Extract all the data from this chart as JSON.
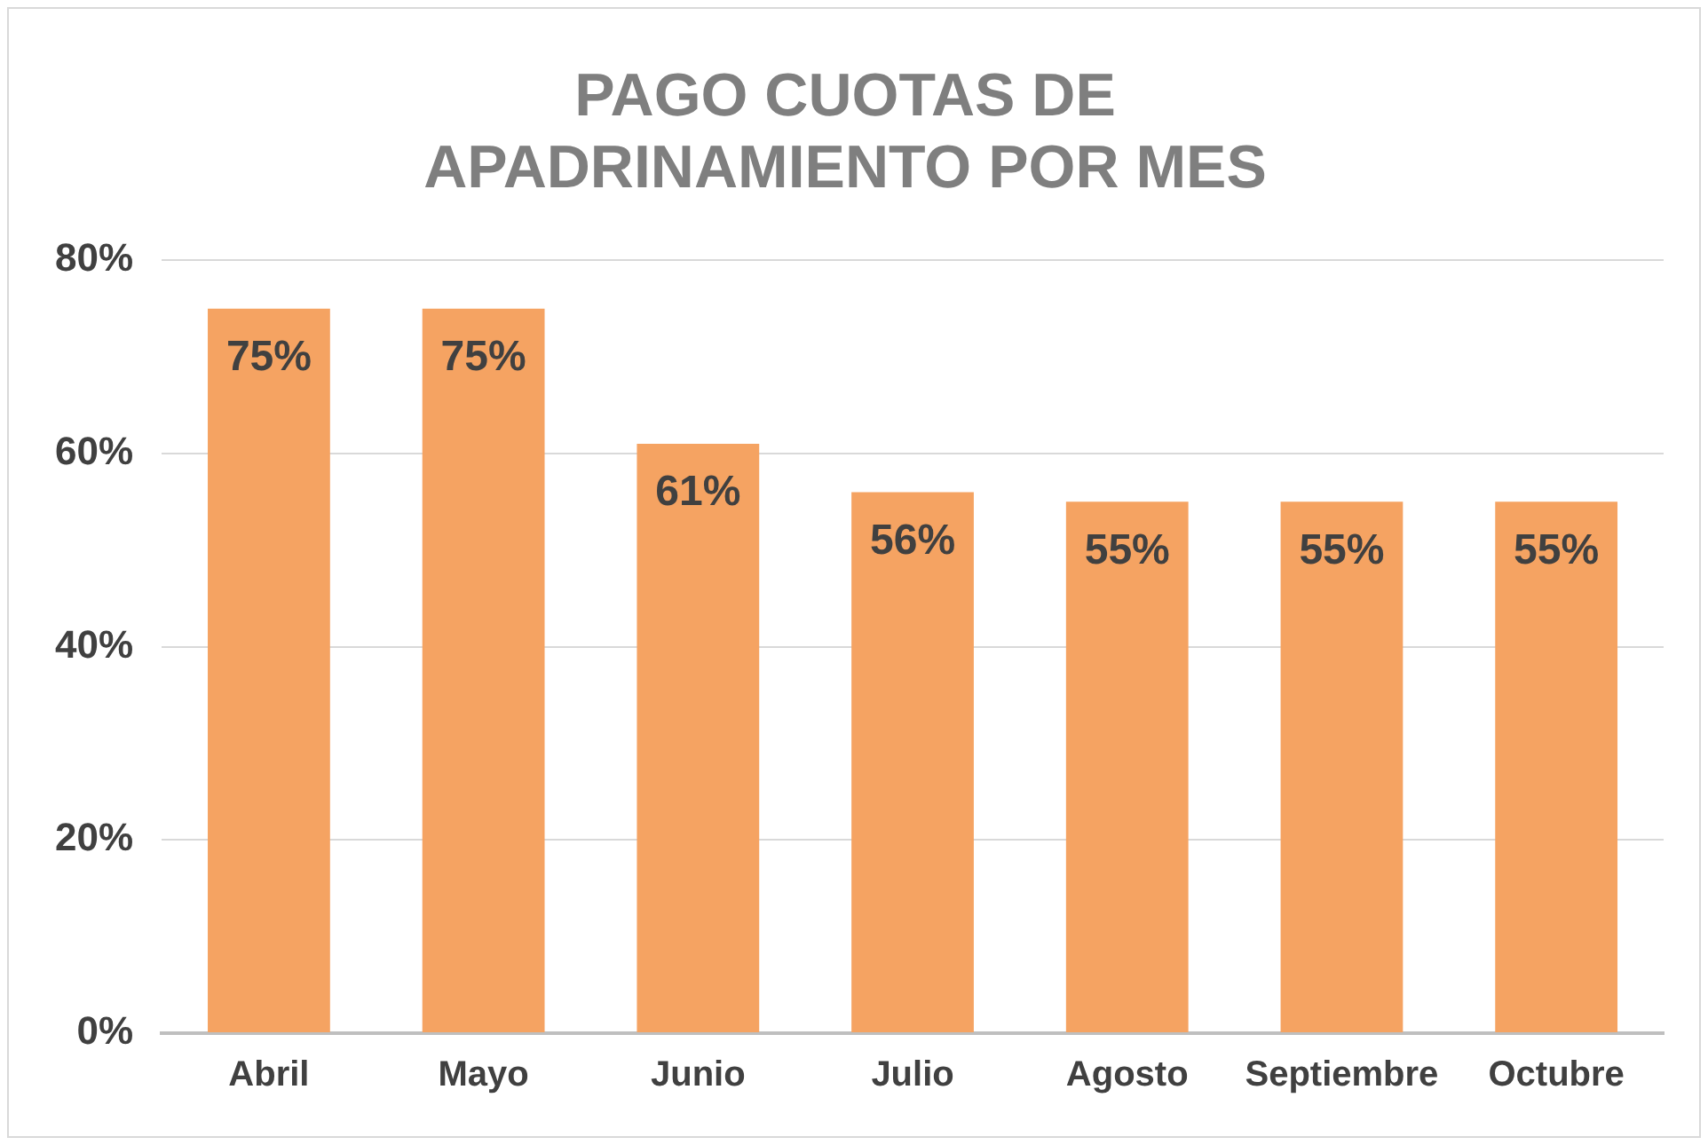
{
  "chart_data": {
    "type": "bar",
    "title": "PAGO CUOTAS DE APADRINAMIENTO POR MES",
    "categories": [
      "Abril",
      "Mayo",
      "Junio",
      "Julio",
      "Agosto",
      "Septiembre",
      "Octubre"
    ],
    "values": [
      75,
      75,
      61,
      56,
      55,
      55,
      55
    ],
    "value_labels": [
      "75%",
      "75%",
      "61%",
      "56%",
      "55%",
      "55%",
      "55%"
    ],
    "color": "#f5a362",
    "ylim": [
      0,
      80
    ],
    "yticks": [
      {
        "value": 0,
        "label": "0%"
      },
      {
        "value": 20,
        "label": "20%"
      },
      {
        "value": 40,
        "label": "40%"
      },
      {
        "value": 60,
        "label": "60%"
      },
      {
        "value": 80,
        "label": "80%"
      }
    ],
    "grid": "y"
  }
}
